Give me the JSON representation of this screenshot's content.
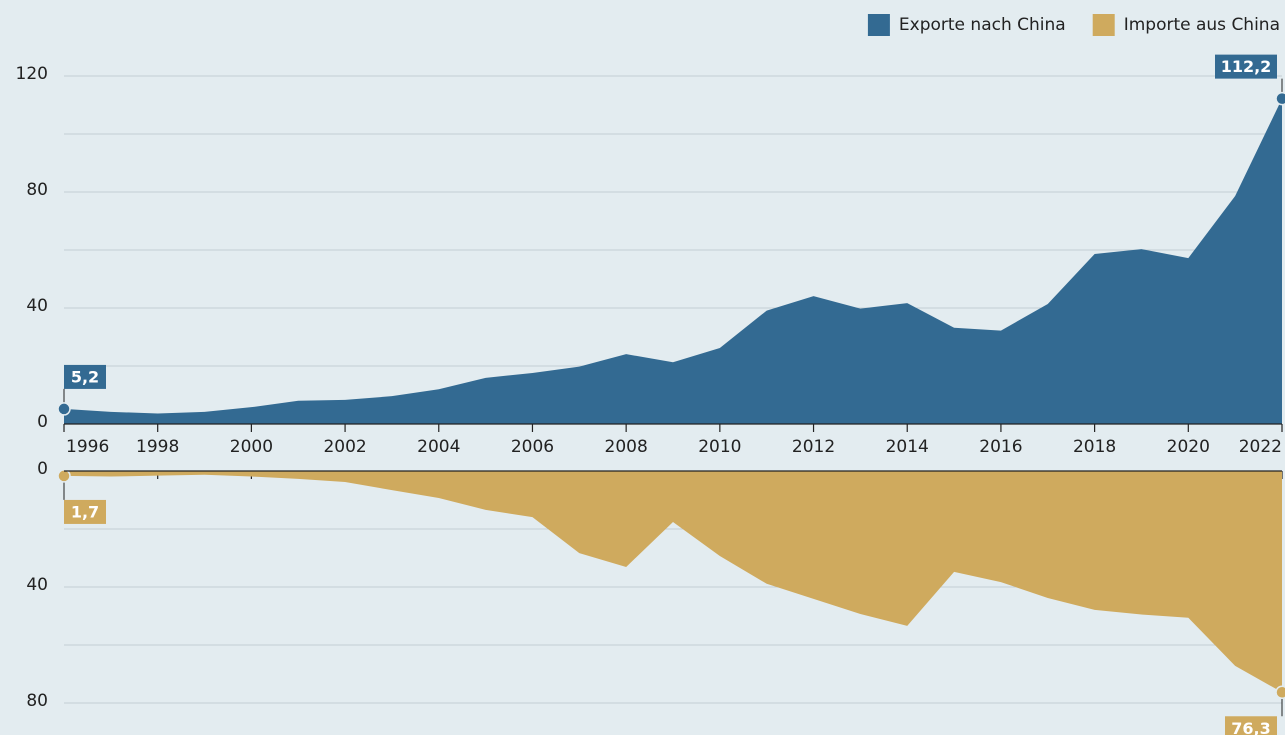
{
  "chart_data": [
    {
      "type": "area",
      "x": [
        1996,
        1997,
        1998,
        1999,
        2000,
        2001,
        2002,
        2003,
        2004,
        2005,
        2006,
        2007,
        2008,
        2009,
        2010,
        2011,
        2012,
        2013,
        2014,
        2015,
        2016,
        2017,
        2018,
        2019,
        2020,
        2021,
        2022
      ],
      "xlim": [
        1996,
        2022
      ],
      "xticks": [
        1996,
        1998,
        2000,
        2002,
        2004,
        2006,
        2008,
        2010,
        2012,
        2014,
        2016,
        2018,
        2020,
        2022
      ],
      "ylim": [
        0,
        140
      ],
      "yticks": [
        0,
        40,
        80,
        120
      ],
      "grid": true,
      "legend": "top-right",
      "series": [
        {
          "name": "Exporte nach China",
          "color": "#336a92",
          "values": [
            5.2,
            4.2,
            3.6,
            4.2,
            5.8,
            8.0,
            8.3,
            9.6,
            12.0,
            15.9,
            17.6,
            19.8,
            24.1,
            21.3,
            26.2,
            39.1,
            44.1,
            39.8,
            41.7,
            33.2,
            32.2,
            41.4,
            58.6,
            60.3,
            57.2,
            78.6,
            112.2
          ],
          "value_labels": [
            "5,2",
            null,
            null,
            null,
            null,
            null,
            null,
            null,
            null,
            null,
            null,
            null,
            null,
            null,
            null,
            null,
            null,
            null,
            null,
            null,
            null,
            null,
            null,
            null,
            null,
            null,
            "112,2"
          ]
        }
      ]
    },
    {
      "type": "area",
      "inverted": true,
      "x": [
        1996,
        1997,
        1998,
        1999,
        2000,
        2001,
        2002,
        2003,
        2004,
        2005,
        2006,
        2007,
        2008,
        2009,
        2010,
        2011,
        2012,
        2013,
        2014,
        2015,
        2016,
        2017,
        2018,
        2019,
        2020,
        2021,
        2022
      ],
      "xlim": [
        1996,
        2022
      ],
      "ylim": [
        0,
        90
      ],
      "yticks": [
        0,
        40,
        80
      ],
      "grid": true,
      "series": [
        {
          "name": "Importe aus China",
          "color": "#cfaa5e",
          "values": [
            1.7,
            1.9,
            1.6,
            1.3,
            1.9,
            2.7,
            3.8,
            6.6,
            9.3,
            13.4,
            15.9,
            28.3,
            33.1,
            17.6,
            29.3,
            38.9,
            44.1,
            49.3,
            53.4,
            34.8,
            38.3,
            43.8,
            47.9,
            49.5,
            50.6,
            67.2,
            76.3
          ],
          "value_labels": [
            "1,7",
            null,
            null,
            null,
            null,
            null,
            null,
            null,
            null,
            null,
            null,
            null,
            null,
            null,
            null,
            null,
            null,
            null,
            null,
            null,
            null,
            null,
            null,
            null,
            null,
            null,
            "76,3"
          ]
        }
      ]
    }
  ]
}
